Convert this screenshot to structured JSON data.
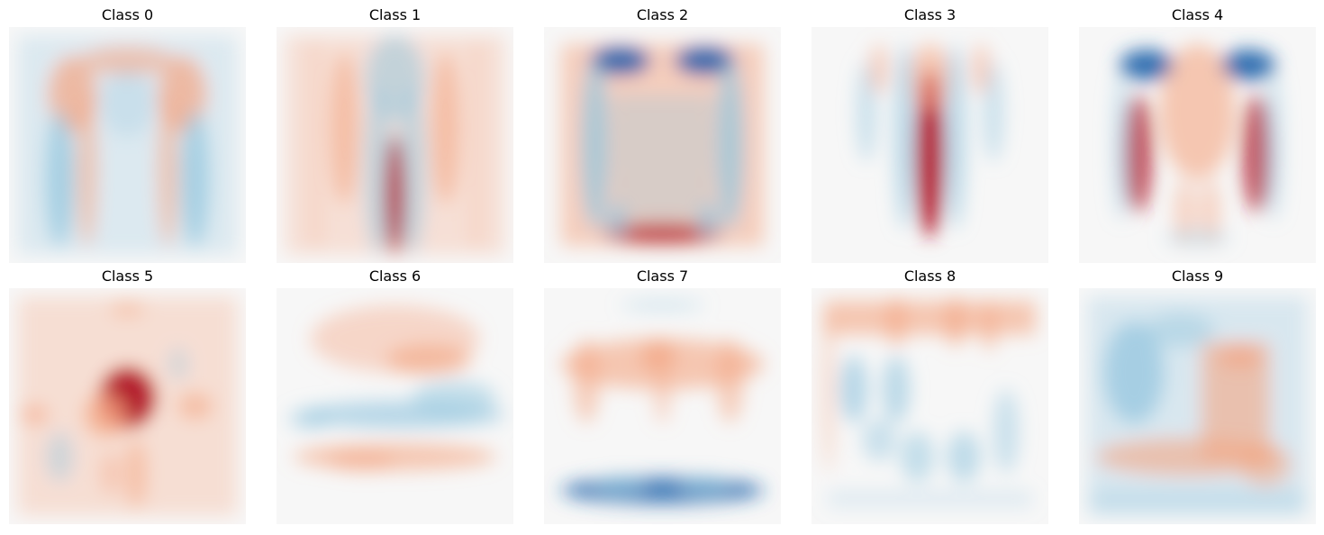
{
  "chart_data": {
    "type": "heatmap",
    "colormap": "RdBu_r",
    "colors": {
      "neg_strong": "#2166ac",
      "neg_mid": "#92c5de",
      "zero": "#f7f7f7",
      "pos_mid": "#f4a582",
      "pos_strong": "#b2182b"
    },
    "grid": "off",
    "axes": "off",
    "panels": [
      {
        "title": "Class 0",
        "motif": "t-shirt"
      },
      {
        "title": "Class 1",
        "motif": "trouser"
      },
      {
        "title": "Class 2",
        "motif": "pullover"
      },
      {
        "title": "Class 3",
        "motif": "dress"
      },
      {
        "title": "Class 4",
        "motif": "coat"
      },
      {
        "title": "Class 5",
        "motif": "sandal"
      },
      {
        "title": "Class 6",
        "motif": "shirt"
      },
      {
        "title": "Class 7",
        "motif": "sneaker"
      },
      {
        "title": "Class 8",
        "motif": "bag"
      },
      {
        "title": "Class 9",
        "motif": "ankle-boot"
      }
    ]
  }
}
